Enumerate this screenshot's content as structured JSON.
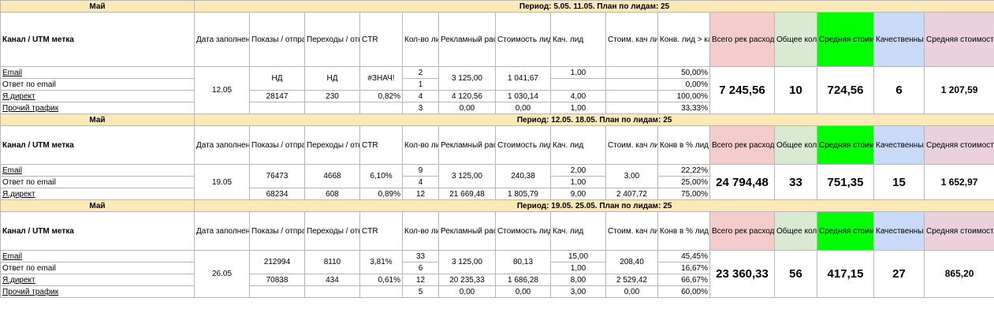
{
  "blocks": [
    {
      "month": "Май",
      "period": "Период: 5.05. 11.05. План по лидам: 25",
      "headers": {
        "channel": "Канал / UTM метка",
        "date": "Дата заполнения",
        "shows": "Показы / отправлено",
        "clicks": "Переходы / открытия",
        "ctr": "CTR",
        "leads": "Кол-во лидов",
        "spend": "Рекламный расход",
        "cpl": "Стоимость лида",
        "qual": "Кач. лид",
        "qcost": "Стоим. кач лида",
        "conv": "Конв. лид > кач",
        "total_spend": "Всего рек расходов",
        "total_leads": "Общее кол-во лидов",
        "avg_cost": "Средняя стоимость лида",
        "quality_leads": "Качественный лид (обратная связь от ОП)",
        "avg_quality_cost": "Средняя стоимость качест лида"
      },
      "date": "12.05",
      "rows": [
        {
          "channel": "Email",
          "leads": "2",
          "conv": "50,00%"
        },
        {
          "channel": "Ответ по email",
          "leads": "1",
          "conv": "0,00%"
        },
        {
          "channel": "Я.директ",
          "shows": "28147",
          "clicks": "230",
          "ctr": "0,82%",
          "leads": "4",
          "spend": "4 120,56",
          "cpl": "1 030,14",
          "qual": "4,00",
          "conv": "100,00%"
        },
        {
          "channel": "Прочий трафик",
          "leads": "3",
          "spend": "0,00",
          "cpl": "0,00",
          "qual": "1,00",
          "conv": "33,33%"
        }
      ],
      "email_merged": {
        "shows": "НД",
        "clicks": "НД",
        "ctr": "#ЗНАЧ!",
        "spend": "3 125,00",
        "cpl": "1 041,67",
        "qual": "1,00"
      },
      "totals": {
        "total_spend": "7 245,56",
        "total_leads": "10",
        "avg_cost": "724,56",
        "quality_leads": "6",
        "avg_quality_cost": "1 207,59"
      }
    },
    {
      "month": "Май",
      "period": "Период: 12.05. 18.05. План по лидам: 25",
      "headers": {
        "channel": "Канал / UTM метка",
        "date": "Дата заполнения",
        "shows": "Показы / отправлено",
        "clicks": "Переходы / открытия",
        "ctr": "CTR",
        "leads": "Кол-во лидов",
        "spend": "Рекламный расход",
        "cpl": "Стоимость лида",
        "qual": "Кач. лид",
        "qcost": "Стоим. кач лида",
        "conv": "Конв в % лид > кач",
        "total_spend": "Всего рек расходов",
        "total_leads": "Общее кол-во лидов",
        "avg_cost": "Средняя стоимость лида",
        "quality_leads": "Качественный лид",
        "avg_quality_cost": "Средняя стоимость качест лида"
      },
      "date": "19.05",
      "rows": [
        {
          "channel": "Email",
          "leads": "9",
          "qual": "2,00",
          "conv": "22,22%"
        },
        {
          "channel": "Ответ по email",
          "leads": "4",
          "qual": "1,00",
          "conv": "25,00%"
        },
        {
          "channel": "Я.директ",
          "shows": "68234",
          "clicks": "608",
          "ctr": "0,89%",
          "leads": "12",
          "spend": "21 669,48",
          "cpl": "1 805,79",
          "qual": "9,00",
          "qcost": "2 407,72",
          "conv": "75,00%"
        }
      ],
      "email_merged": {
        "shows": "76473",
        "clicks": "4668",
        "ctr": "6,10%",
        "spend": "3 125,00",
        "cpl": "240,38",
        "qcost": "3,00"
      },
      "totals": {
        "total_spend": "24 794,48",
        "total_leads": "33",
        "avg_cost": "751,35",
        "quality_leads": "15",
        "avg_quality_cost": "1 652,97"
      }
    },
    {
      "month": "Май",
      "period": "Период: 19.05. 25.05. План по лидам: 25",
      "headers": {
        "channel": "Канал / UTM метка",
        "date": "Дата заполнения",
        "shows": "Показы / отправлено",
        "clicks": "Переходы / открытия",
        "ctr": "CTR",
        "leads": "Кол-во лидов",
        "spend": "Рекламный расход",
        "cpl": "Стоимость лида",
        "qual": "Кач. лид",
        "qcost": "Стоим. кач лида",
        "conv": "Конв в % лид > кач",
        "total_spend": "Всего рек расходов",
        "total_leads": "Общее кол-во лидов",
        "avg_cost": "Средняя стоимость лида",
        "quality_leads": "Качественный лид",
        "avg_quality_cost": "Средняя стоимость качест лида"
      },
      "date": "26.05",
      "rows": [
        {
          "channel": "Email",
          "leads": "33",
          "qual": "15,00",
          "conv": "45,45%"
        },
        {
          "channel": "Ответ по email",
          "leads": "6",
          "qual": "1,00",
          "conv": "16,67%"
        },
        {
          "channel": "Я.директ",
          "shows": "70838",
          "clicks": "434",
          "ctr": "0,61%",
          "leads": "12",
          "spend": "20 235,33",
          "cpl": "1 686,28",
          "qual": "8,00",
          "qcost": "2 529,42",
          "conv": "66,67%"
        },
        {
          "channel": "Прочий трафик",
          "leads": "5",
          "spend": "0,00",
          "cpl": "0,00",
          "qual": "3,00",
          "qcost": "0,00",
          "conv": "60,00%"
        }
      ],
      "email_merged": {
        "shows": "212994",
        "clicks": "8110",
        "ctr": "3,81%",
        "spend": "3 125,00",
        "cpl": "80,13",
        "qcost": "208,40"
      },
      "totals": {
        "total_spend": "23 360,33",
        "total_leads": "56",
        "avg_cost": "417,15",
        "quality_leads": "27",
        "avg_quality_cost": "865,20"
      }
    }
  ],
  "colors": {
    "band": "#fde9b8",
    "pink": "#f4cccc",
    "gray": "#d9ead3",
    "green": "#00ff00",
    "blue": "#c9daf8",
    "lavender": "#ead1dc"
  }
}
